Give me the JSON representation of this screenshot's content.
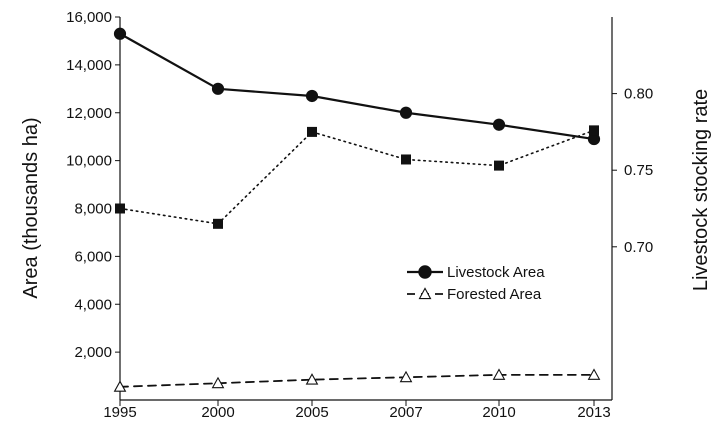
{
  "chart_data": {
    "type": "line",
    "x": [
      "1995",
      "2000",
      "2005",
      "2007",
      "2010",
      "2013"
    ],
    "left_axis": {
      "label": "Area (thousands ha)",
      "ylim": [
        0,
        16000
      ],
      "ticks": [
        "2,000",
        "4,000",
        "6,000",
        "8,000",
        "10,000",
        "12,000",
        "14,000",
        "16,000"
      ]
    },
    "right_axis": {
      "label": "Livestock stocking rate",
      "ylim": [
        0.6,
        0.85
      ],
      "ticks": [
        "0.70",
        "0.75",
        "0.80"
      ]
    },
    "series": [
      {
        "name": "Livestock Area",
        "axis": "left",
        "marker": "filled-circle",
        "line_style": "solid",
        "values": [
          15300,
          13000,
          12700,
          12000,
          11500,
          10900
        ]
      },
      {
        "name": "Forested Area",
        "axis": "left",
        "marker": "open-triangle",
        "line_style": "dashed",
        "values": [
          550,
          700,
          850,
          950,
          1050,
          1050
        ]
      },
      {
        "axis": "right",
        "marker": "filled-square",
        "line_style": "dotted",
        "values": [
          0.725,
          0.715,
          0.775,
          0.757,
          0.753,
          0.776
        ]
      }
    ],
    "legend": {
      "placement": "center-right",
      "entries": [
        "Livestock Area",
        "Forested Area"
      ]
    },
    "grid": false
  }
}
